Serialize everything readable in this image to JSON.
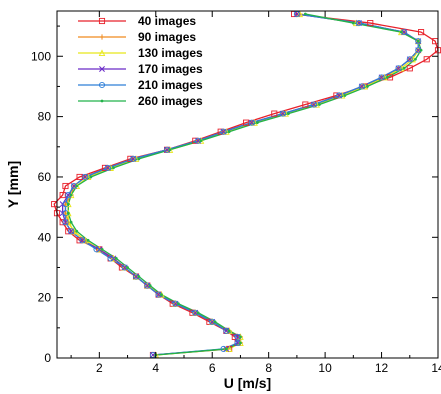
{
  "chart_data": {
    "type": "line",
    "title": "",
    "xlabel": "U [m/s]",
    "ylabel": "Y [mm]",
    "xlim": [
      0.5,
      14
    ],
    "ylim": [
      0,
      115
    ],
    "xticks": [
      2,
      4,
      6,
      8,
      10,
      12,
      14
    ],
    "yticks": [
      0,
      20,
      40,
      60,
      80,
      100
    ],
    "grid": false,
    "legend": "top-left",
    "series": [
      {
        "name": "40 images",
        "color": "#e8202a",
        "marker": "square",
        "y": [
          1,
          3,
          5,
          7,
          9,
          12,
          15,
          18,
          21,
          24,
          27,
          30,
          33,
          36,
          39,
          42,
          45,
          48,
          51,
          54,
          57,
          60,
          63,
          66,
          69,
          72,
          75,
          78,
          81,
          84,
          87,
          90,
          93,
          96,
          99,
          102,
          105,
          108,
          111,
          114
        ],
        "x": [
          3.9,
          6.6,
          6.9,
          6.8,
          6.5,
          5.9,
          5.3,
          4.6,
          4.1,
          3.7,
          3.3,
          2.8,
          2.4,
          2.0,
          1.3,
          0.9,
          0.7,
          0.5,
          0.4,
          0.7,
          0.8,
          1.3,
          2.2,
          3.1,
          4.4,
          5.4,
          6.3,
          7.2,
          8.2,
          9.3,
          10.4,
          11.4,
          12.3,
          13.0,
          13.6,
          14.0,
          13.9,
          13.4,
          11.6,
          8.9
        ]
      },
      {
        "name": "90 images",
        "color": "#f08a1d",
        "marker": "plus",
        "y": [
          1,
          3,
          5,
          7,
          9,
          12,
          15,
          18,
          21,
          24,
          27,
          30,
          33,
          36,
          39,
          42,
          45,
          48,
          51,
          54,
          57,
          60,
          63,
          66,
          69,
          72,
          75,
          78,
          81,
          84,
          87,
          90,
          93,
          96,
          99,
          102,
          105,
          108,
          111,
          114
        ],
        "x": [
          4.0,
          6.5,
          7.0,
          7.0,
          6.6,
          6.0,
          5.4,
          4.7,
          4.1,
          3.7,
          3.3,
          2.9,
          2.5,
          2.0,
          1.5,
          1.1,
          0.9,
          0.8,
          0.8,
          1.0,
          1.1,
          1.5,
          2.3,
          3.2,
          4.4,
          5.5,
          6.4,
          7.4,
          8.5,
          9.6,
          10.5,
          11.3,
          12.0,
          12.6,
          13.0,
          13.3,
          13.3,
          12.8,
          11.2,
          9.1
        ]
      },
      {
        "name": "130 images",
        "color": "#e8e81a",
        "marker": "triangle",
        "y": [
          1,
          3,
          5,
          7,
          9,
          12,
          15,
          18,
          21,
          24,
          27,
          30,
          33,
          36,
          39,
          42,
          45,
          48,
          51,
          54,
          57,
          60,
          63,
          66,
          69,
          72,
          75,
          78,
          81,
          84,
          87,
          90,
          93,
          96,
          99,
          102,
          105,
          108,
          111,
          114
        ],
        "x": [
          4.0,
          6.6,
          7.0,
          7.0,
          6.6,
          6.0,
          5.4,
          4.7,
          4.2,
          3.7,
          3.3,
          2.9,
          2.5,
          2.0,
          1.5,
          1.1,
          0.9,
          0.9,
          0.9,
          1.0,
          1.2,
          1.6,
          2.4,
          3.3,
          4.5,
          5.6,
          6.5,
          7.5,
          8.6,
          9.7,
          10.6,
          11.4,
          12.1,
          12.7,
          13.1,
          13.3,
          13.3,
          12.7,
          11.1,
          9.1
        ]
      },
      {
        "name": "170 images",
        "color": "#6a2bc8",
        "marker": "x",
        "y": [
          1,
          3,
          5,
          7,
          9,
          12,
          15,
          18,
          21,
          24,
          27,
          30,
          33,
          36,
          39,
          42,
          45,
          48,
          51,
          54,
          57,
          60,
          63,
          66,
          69,
          72,
          75,
          78,
          81,
          84,
          87,
          90,
          93,
          96,
          99,
          102,
          105,
          108,
          111,
          114
        ],
        "x": [
          3.9,
          6.5,
          6.9,
          6.9,
          6.5,
          6.0,
          5.4,
          4.7,
          4.1,
          3.7,
          3.3,
          2.9,
          2.5,
          2.0,
          1.4,
          1.0,
          0.8,
          0.7,
          0.7,
          0.9,
          1.1,
          1.5,
          2.3,
          3.2,
          4.4,
          5.5,
          6.4,
          7.4,
          8.5,
          9.6,
          10.5,
          11.3,
          12.0,
          12.6,
          13.0,
          13.3,
          13.3,
          12.8,
          11.2,
          9.0
        ]
      },
      {
        "name": "210 images",
        "color": "#2f7fd8",
        "marker": "circle",
        "y": [
          1,
          3,
          5,
          7,
          9,
          12,
          15,
          18,
          21,
          24,
          27,
          30,
          33,
          36,
          39,
          42,
          45,
          48,
          51,
          54,
          57,
          60,
          63,
          66,
          69,
          72,
          75,
          78,
          81,
          84,
          87,
          90,
          93,
          96,
          99,
          102,
          105,
          108,
          111,
          114
        ],
        "x": [
          3.9,
          6.4,
          6.9,
          6.9,
          6.5,
          6.0,
          5.4,
          4.7,
          4.1,
          3.7,
          3.3,
          2.9,
          2.4,
          1.9,
          1.4,
          1.0,
          0.8,
          0.8,
          0.8,
          0.9,
          1.1,
          1.5,
          2.3,
          3.2,
          4.4,
          5.5,
          6.4,
          7.4,
          8.5,
          9.6,
          10.5,
          11.3,
          12.0,
          12.6,
          13.0,
          13.3,
          13.3,
          12.8,
          11.2,
          9.0
        ]
      },
      {
        "name": "260 images",
        "color": "#22b24a",
        "marker": "dot",
        "y": [
          1,
          3,
          5,
          7,
          9,
          12,
          15,
          18,
          21,
          24,
          27,
          30,
          33,
          36,
          39,
          42,
          45,
          48,
          51,
          54,
          57,
          60,
          63,
          66,
          69,
          72,
          75,
          78,
          81,
          84,
          87,
          90,
          93,
          96,
          99,
          102,
          105,
          108,
          111,
          114
        ],
        "x": [
          4.0,
          6.5,
          7.0,
          7.0,
          6.6,
          6.1,
          5.5,
          4.8,
          4.2,
          3.8,
          3.4,
          3.0,
          2.6,
          2.1,
          1.6,
          1.2,
          1.0,
          0.9,
          0.9,
          1.0,
          1.2,
          1.7,
          2.5,
          3.4,
          4.5,
          5.6,
          6.6,
          7.6,
          8.7,
          9.8,
          10.7,
          11.5,
          12.2,
          12.8,
          13.2,
          13.4,
          13.3,
          12.7,
          11.0,
          9.3
        ]
      }
    ]
  }
}
